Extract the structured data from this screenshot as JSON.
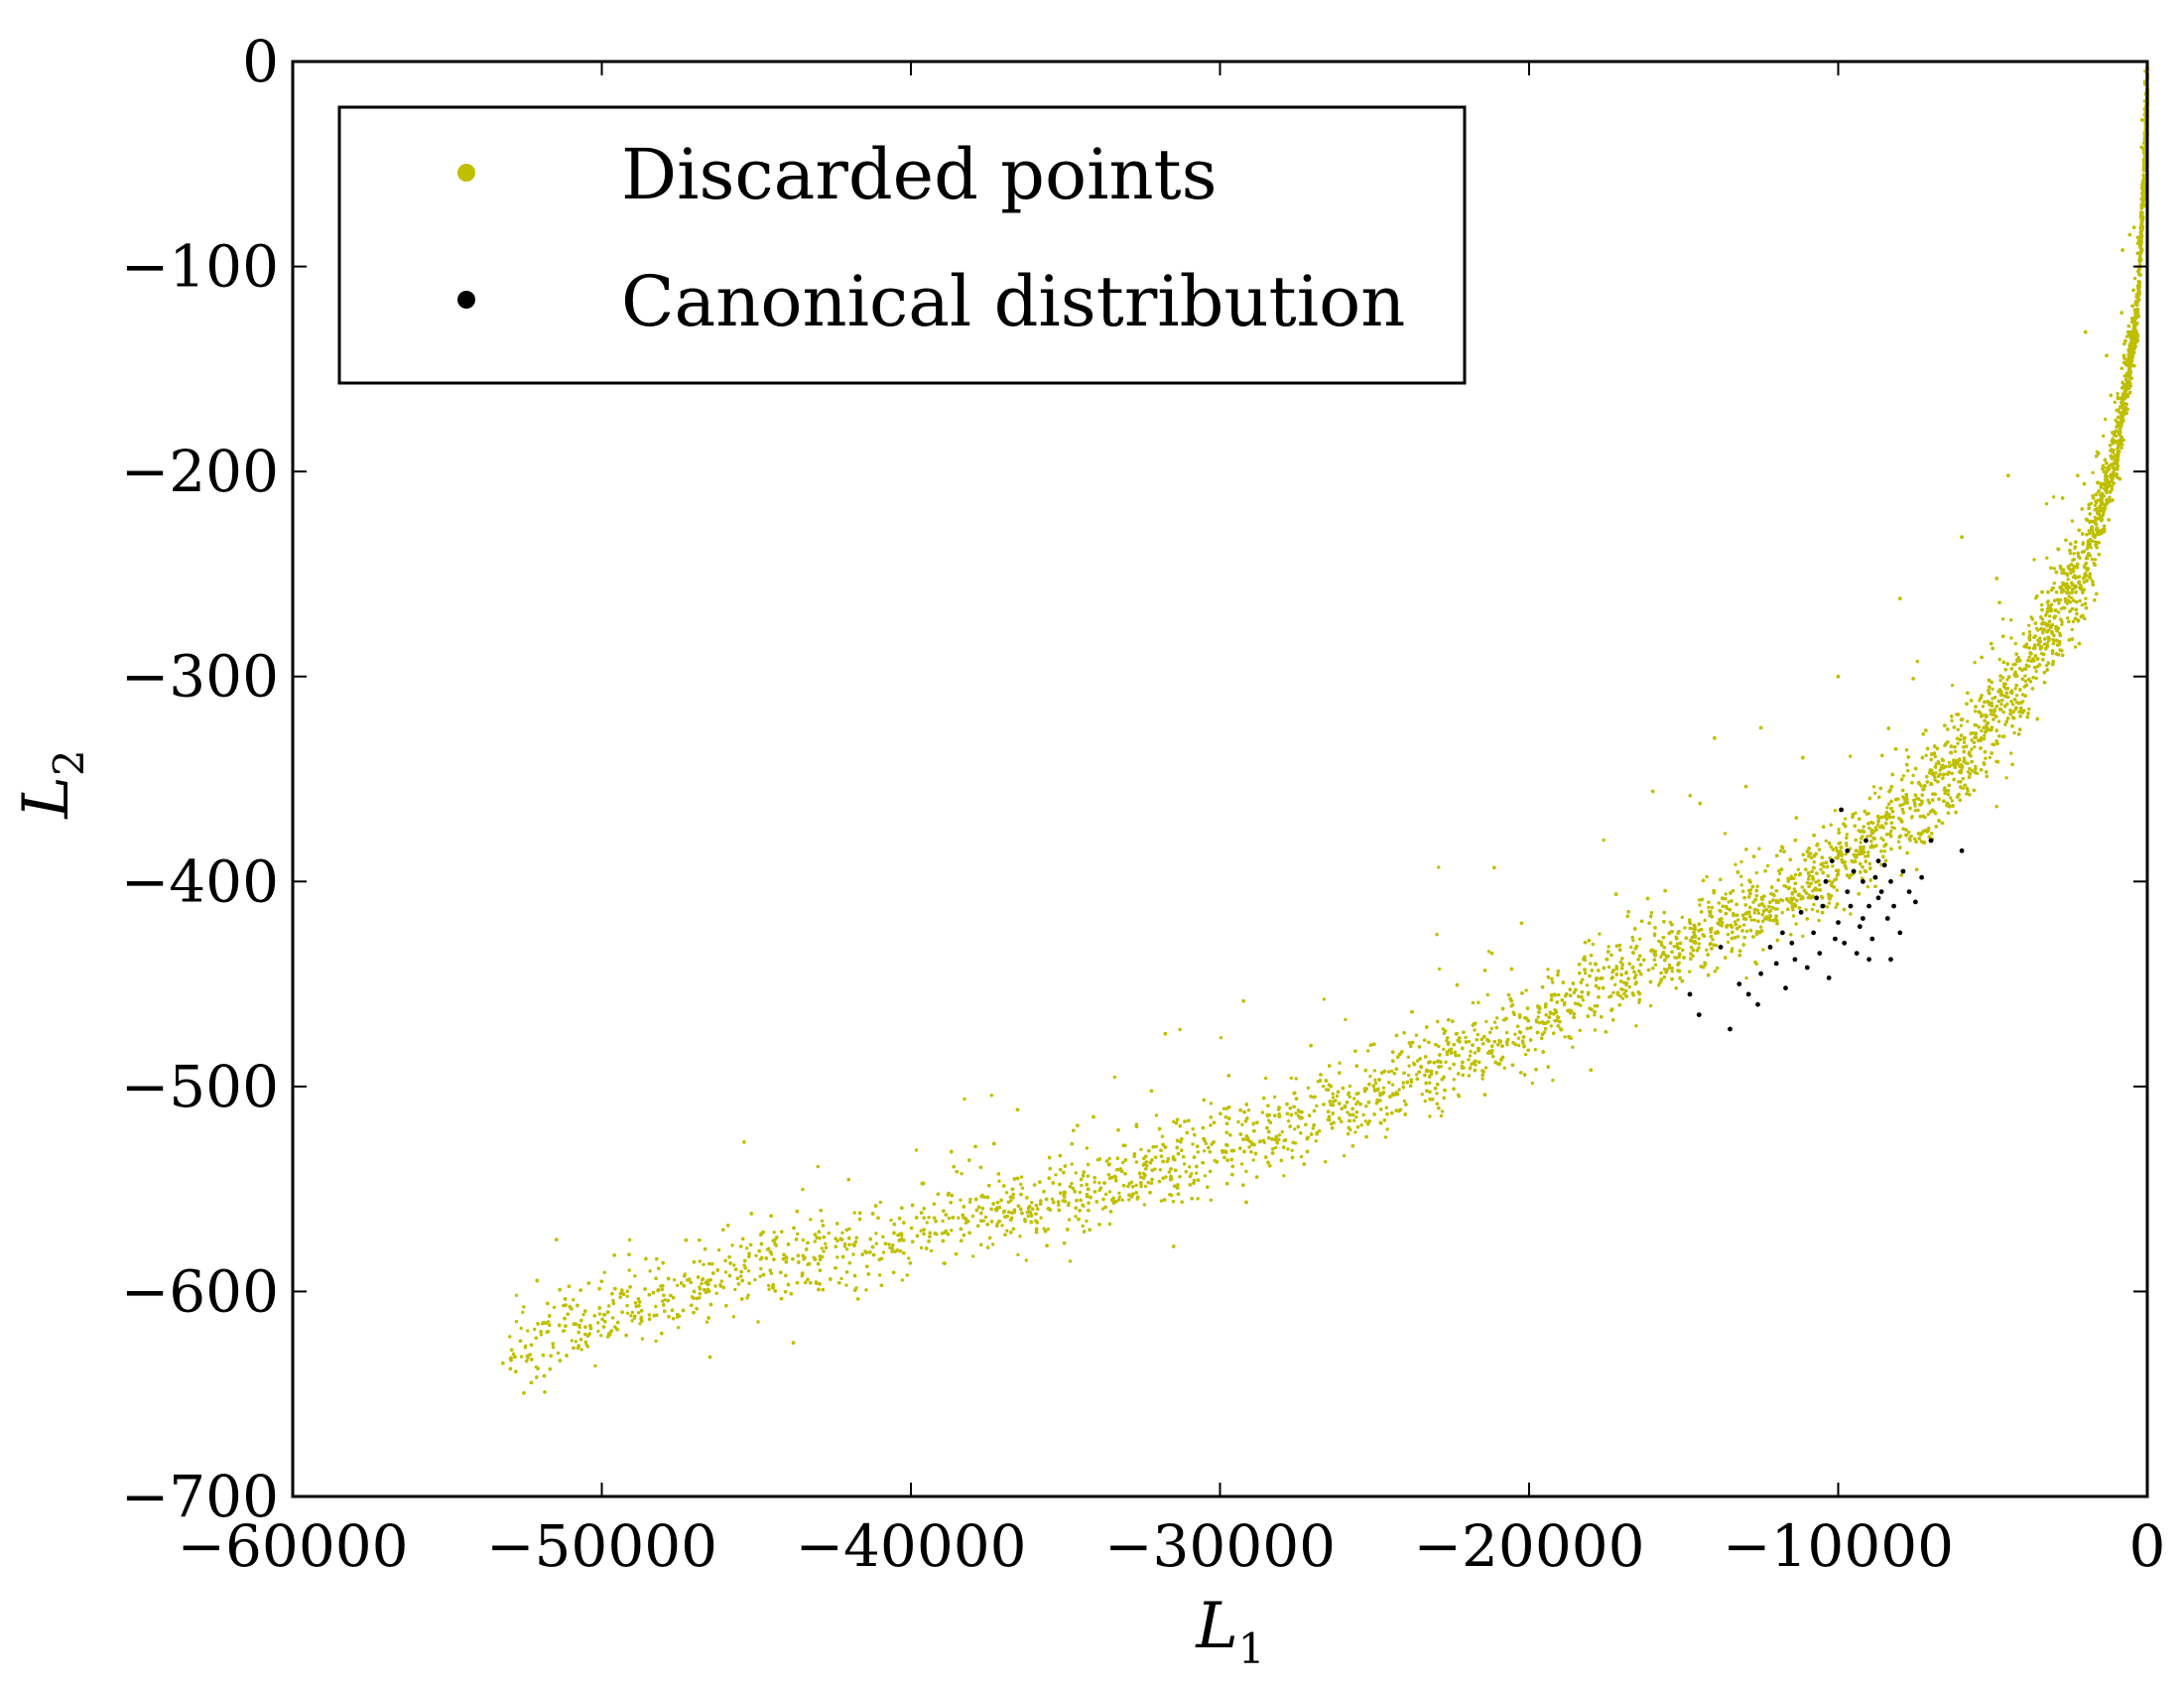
{
  "chart_data": {
    "type": "scatter",
    "title": "",
    "xlabel": {
      "base": "L",
      "sub": "1"
    },
    "ylabel": {
      "base": "L",
      "sub": "2"
    },
    "xlim": [
      -60000,
      0
    ],
    "ylim": [
      -700,
      0
    ],
    "xticks": [
      -60000,
      -50000,
      -40000,
      -30000,
      -20000,
      -10000,
      0
    ],
    "xtick_labels": [
      "−60000",
      "−50000",
      "−40000",
      "−30000",
      "−20000",
      "−10000",
      "0"
    ],
    "yticks": [
      0,
      -100,
      -200,
      -300,
      -400,
      -500,
      -600,
      -700
    ],
    "ytick_labels": [
      "0",
      "−100",
      "−200",
      "−300",
      "−400",
      "−500",
      "−600",
      "−700"
    ],
    "grid": false,
    "legend": {
      "placement": "upper-left"
    },
    "series": [
      {
        "name": "Discarded points",
        "color": "#bfbf00",
        "marker": "dot",
        "n_points": 14000,
        "trend": [
          [
            -53000,
            -635
          ],
          [
            -50000,
            -612
          ],
          [
            -45000,
            -590
          ],
          [
            -40000,
            -572
          ],
          [
            -35000,
            -556
          ],
          [
            -30000,
            -530
          ],
          [
            -25000,
            -505
          ],
          [
            -20000,
            -470
          ],
          [
            -17000,
            -445
          ],
          [
            -15000,
            -432
          ],
          [
            -12000,
            -410
          ],
          [
            -10000,
            -392
          ],
          [
            -8000,
            -370
          ],
          [
            -6000,
            -342
          ],
          [
            -4000,
            -300
          ],
          [
            -2000,
            -245
          ],
          [
            -1000,
            -190
          ],
          [
            -300,
            -120
          ],
          [
            0,
            -20
          ]
        ],
        "scatter": [
          [
            -53200,
            -635
          ],
          [
            -49800,
            -622
          ],
          [
            -49800,
            -610
          ],
          [
            -48800,
            -607
          ],
          [
            -47500,
            -612
          ],
          [
            -46500,
            -632
          ],
          [
            -46000,
            -585
          ],
          [
            -45500,
            -578
          ],
          [
            -43800,
            -625
          ],
          [
            -42000,
            -574
          ],
          [
            -36000,
            -548
          ],
          [
            -31500,
            -578
          ],
          [
            -24500,
            -505
          ],
          [
            -21200,
            -435
          ],
          [
            -18000,
            -492
          ],
          [
            -16000,
            -356
          ],
          [
            -14000,
            -330
          ],
          [
            -12500,
            -325
          ],
          [
            -10000,
            -300
          ],
          [
            -8000,
            -262
          ],
          [
            -6000,
            -232
          ],
          [
            -4500,
            -202
          ],
          [
            -2000,
            -132
          ],
          [
            -800,
            -92
          ]
        ]
      },
      {
        "name": "Canonical distribution",
        "color": "#000000",
        "marker": "dot",
        "points": [
          [
            -13500,
            -472
          ],
          [
            -13800,
            -432
          ],
          [
            -12600,
            -460
          ],
          [
            -12500,
            -445
          ],
          [
            -12000,
            -440
          ],
          [
            -11500,
            -430
          ],
          [
            -11200,
            -415
          ],
          [
            -11000,
            -442
          ],
          [
            -10800,
            -425
          ],
          [
            -10600,
            -435
          ],
          [
            -10500,
            -412
          ],
          [
            -10400,
            -400
          ],
          [
            -10200,
            -390
          ],
          [
            -10000,
            -420
          ],
          [
            -9900,
            -365
          ],
          [
            -9800,
            -430
          ],
          [
            -9700,
            -405
          ],
          [
            -9600,
            -412
          ],
          [
            -9500,
            -395
          ],
          [
            -9400,
            -435
          ],
          [
            -9300,
            -422
          ],
          [
            -9200,
            -400
          ],
          [
            -9100,
            -380
          ],
          [
            -9000,
            -412
          ],
          [
            -8900,
            -428
          ],
          [
            -8800,
            -398
          ],
          [
            -8700,
            -408
          ],
          [
            -8600,
            -405
          ],
          [
            -8500,
            -392
          ],
          [
            -8400,
            -418
          ],
          [
            -8300,
            -400
          ],
          [
            -8200,
            -412
          ],
          [
            -8000,
            -425
          ],
          [
            -7900,
            -395
          ],
          [
            -7700,
            -405
          ],
          [
            -7500,
            -410
          ],
          [
            -7300,
            -398
          ],
          [
            -7000,
            -380
          ],
          [
            -14500,
            -465
          ],
          [
            -12900,
            -455
          ],
          [
            -11700,
            -452
          ],
          [
            -10300,
            -447
          ],
          [
            -9000,
            -438
          ],
          [
            -6000,
            -385
          ],
          [
            -14800,
            -455
          ],
          [
            -13200,
            -450
          ],
          [
            -11400,
            -438
          ],
          [
            -10700,
            -408
          ],
          [
            -9700,
            -385
          ],
          [
            -8300,
            -438
          ],
          [
            -11800,
            -425
          ],
          [
            -12200,
            -432
          ],
          [
            -10100,
            -428
          ],
          [
            -9200,
            -418
          ],
          [
            -8700,
            -390
          ]
        ]
      }
    ]
  }
}
